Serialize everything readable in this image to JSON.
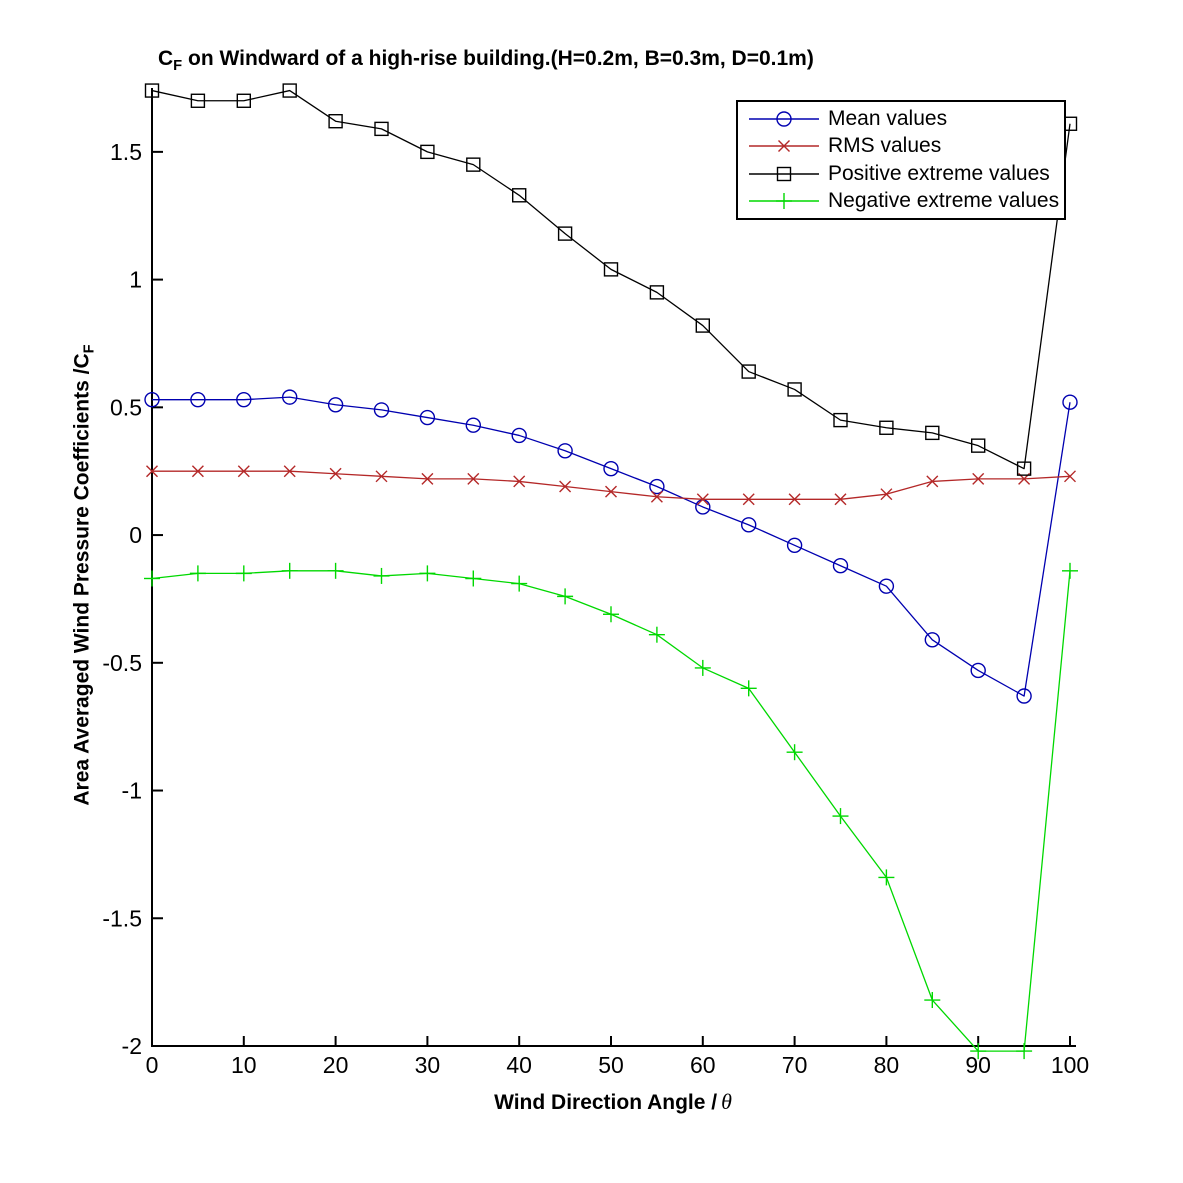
{
  "title": {
    "prefix": "C",
    "subscript": "F",
    "rest": " on Windward of a high-rise building.(H=0.2m, B=0.3m, D=0.1m)"
  },
  "x_axis": {
    "label": "Wind Direction Angle  /",
    "symbol": "θ"
  },
  "y_axis": {
    "label": "Area Averaged Wind Pressure Coefficients /C",
    "subscript": "F"
  },
  "chart_data": {
    "type": "line",
    "title": "C_F on Windward of a high-rise building.(H=0.2m, B=0.3m, D=0.1m)",
    "xlabel": "Wind Direction Angle / θ",
    "ylabel": "Area Averaged Wind Pressure Coefficients /C_F",
    "x": [
      0,
      5,
      10,
      15,
      20,
      25,
      30,
      35,
      40,
      45,
      50,
      55,
      60,
      65,
      70,
      75,
      80,
      85,
      90,
      95,
      100
    ],
    "series": [
      {
        "name": "Mean values",
        "color": "#0000b0",
        "marker": "circle",
        "values": [
          0.53,
          0.53,
          0.53,
          0.54,
          0.51,
          0.49,
          0.46,
          0.43,
          0.39,
          0.33,
          0.26,
          0.19,
          0.11,
          0.04,
          -0.04,
          -0.12,
          -0.2,
          -0.41,
          -0.53,
          -0.63,
          0.52
        ]
      },
      {
        "name": "RMS values",
        "color": "#b42828",
        "marker": "x",
        "values": [
          0.25,
          0.25,
          0.25,
          0.25,
          0.24,
          0.23,
          0.22,
          0.22,
          0.21,
          0.19,
          0.17,
          0.15,
          0.14,
          0.14,
          0.14,
          0.14,
          0.16,
          0.21,
          0.22,
          0.22,
          0.23
        ]
      },
      {
        "name": "Positive extreme values",
        "color": "#000000",
        "marker": "square",
        "values": [
          1.74,
          1.7,
          1.7,
          1.74,
          1.62,
          1.59,
          1.5,
          1.45,
          1.33,
          1.18,
          1.04,
          0.95,
          0.82,
          0.64,
          0.57,
          0.45,
          0.42,
          0.4,
          0.35,
          0.26,
          1.61
        ]
      },
      {
        "name": "Negative extreme values",
        "color": "#00d800",
        "marker": "plus",
        "values": [
          -0.17,
          -0.15,
          -0.15,
          -0.14,
          -0.14,
          -0.16,
          -0.15,
          -0.17,
          -0.19,
          -0.24,
          -0.31,
          -0.39,
          -0.52,
          -0.6,
          -0.85,
          -1.1,
          -1.34,
          -1.82,
          -2.02,
          -2.02,
          -0.14
        ]
      }
    ],
    "xlim": [
      0,
      100
    ],
    "ylim": [
      -2,
      1.75
    ],
    "xticks": [
      0,
      10,
      20,
      30,
      40,
      50,
      60,
      70,
      80,
      90,
      100
    ],
    "yticks": [
      -2,
      -1.5,
      -1,
      -0.5,
      0,
      0.5,
      1,
      1.5
    ],
    "grid": false,
    "legend_position": "upper-right"
  }
}
